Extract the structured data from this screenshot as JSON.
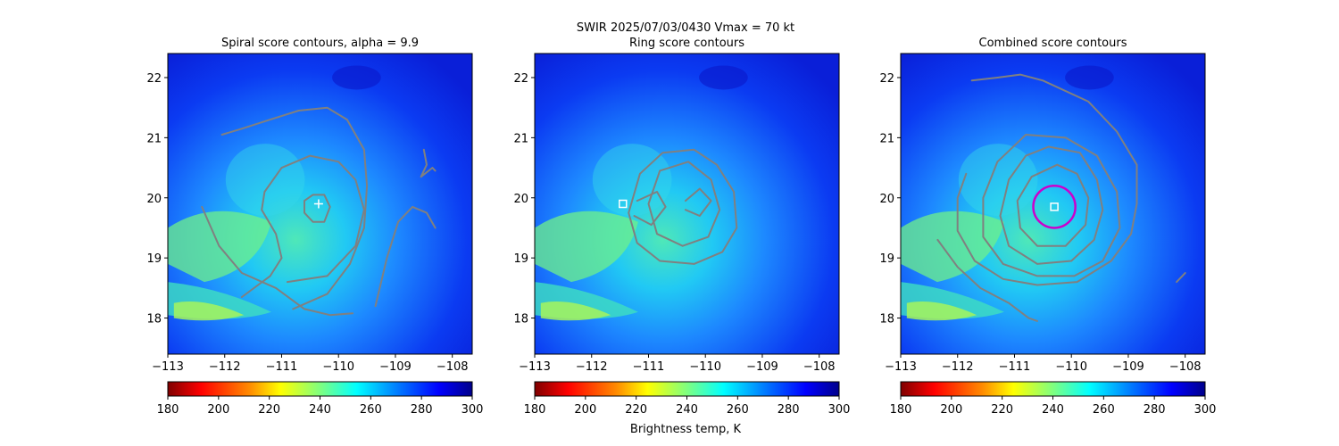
{
  "suptitle": "SWIR  2025/07/03/0430    Vmax = 70 kt",
  "colorbar_label": "Brightness temp, K",
  "colormap": [
    "#800000",
    "#ff0000",
    "#ff8000",
    "#ffff00",
    "#80ff80",
    "#00ffff",
    "#0080ff",
    "#0000ff",
    "#00008f"
  ],
  "chart_data": [
    {
      "type": "heatmap",
      "title": "Spiral score contours, alpha =  9.9",
      "xlim": [
        -113,
        -107.65
      ],
      "ylim": [
        17.4,
        22.4
      ],
      "xticks": [
        -113,
        -112,
        -111,
        -110,
        -109,
        -108
      ],
      "xtick_labels": [
        "−113",
        "−112",
        "−111",
        "−110",
        "−109",
        "−108"
      ],
      "yticks": [
        18,
        19,
        20,
        21,
        22
      ],
      "ytick_labels": [
        "18",
        "19",
        "20",
        "21",
        "22"
      ],
      "center_marker": {
        "lon": -110.35,
        "lat": 19.9,
        "symbol": "+"
      },
      "colorbar": {
        "min": 180,
        "max": 300,
        "ticks": [
          180,
          200,
          220,
          240,
          260,
          280,
          300
        ],
        "tick_labels": [
          "180",
          "200",
          "220",
          "240",
          "260",
          "280",
          "300"
        ]
      },
      "contours": [
        [
          [
            -110.45,
            20.05
          ],
          [
            -110.25,
            20.05
          ],
          [
            -110.15,
            19.85
          ],
          [
            -110.25,
            19.6
          ],
          [
            -110.45,
            19.6
          ],
          [
            -110.6,
            19.75
          ],
          [
            -110.6,
            19.95
          ],
          [
            -110.45,
            20.05
          ]
        ],
        [
          [
            -111.7,
            18.35
          ],
          [
            -111.2,
            18.7
          ],
          [
            -111.0,
            19.0
          ],
          [
            -111.1,
            19.4
          ],
          [
            -111.35,
            19.8
          ],
          [
            -111.3,
            20.1
          ],
          [
            -111.0,
            20.5
          ],
          [
            -110.5,
            20.7
          ],
          [
            -110.0,
            20.6
          ],
          [
            -109.7,
            20.3
          ],
          [
            -109.55,
            19.8
          ],
          [
            -109.7,
            19.2
          ],
          [
            -110.2,
            18.7
          ],
          [
            -110.9,
            18.6
          ]
        ],
        [
          [
            -112.4,
            19.85
          ],
          [
            -112.1,
            19.2
          ],
          [
            -111.7,
            18.75
          ],
          [
            -111.1,
            18.5
          ],
          [
            -110.6,
            18.15
          ],
          [
            -110.15,
            18.05
          ],
          [
            -109.75,
            18.08
          ]
        ],
        [
          [
            -112.05,
            21.05
          ],
          [
            -111.7,
            21.15
          ],
          [
            -111.2,
            21.3
          ],
          [
            -110.7,
            21.45
          ],
          [
            -110.2,
            21.5
          ],
          [
            -109.85,
            21.3
          ],
          [
            -109.55,
            20.8
          ],
          [
            -109.5,
            20.2
          ],
          [
            -109.55,
            19.5
          ],
          [
            -109.8,
            18.9
          ],
          [
            -110.2,
            18.4
          ],
          [
            -110.8,
            18.15
          ]
        ],
        [
          [
            -109.35,
            18.2
          ],
          [
            -109.15,
            19.0
          ],
          [
            -108.95,
            19.6
          ],
          [
            -108.7,
            19.85
          ],
          [
            -108.45,
            19.75
          ],
          [
            -108.3,
            19.5
          ]
        ],
        [
          [
            -108.5,
            20.8
          ],
          [
            -108.45,
            20.55
          ],
          [
            -108.55,
            20.35
          ],
          [
            -108.35,
            20.5
          ],
          [
            -108.3,
            20.45
          ]
        ]
      ]
    },
    {
      "type": "heatmap",
      "title": "Ring score contours",
      "xlim": [
        -113,
        -107.65
      ],
      "ylim": [
        17.4,
        22.4
      ],
      "xticks": [
        -113,
        -112,
        -111,
        -110,
        -109,
        -108
      ],
      "xtick_labels": [
        "−113",
        "−112",
        "−111",
        "−110",
        "−109",
        "−108"
      ],
      "yticks": [
        18,
        19,
        20,
        21,
        22
      ],
      "ytick_labels": [
        "18",
        "19",
        "20",
        "21",
        "22"
      ],
      "center_marker": {
        "lon": -111.45,
        "lat": 19.9,
        "symbol": "square"
      },
      "colorbar": {
        "min": 180,
        "max": 300,
        "ticks": [
          180,
          200,
          220,
          240,
          260,
          280,
          300
        ],
        "tick_labels": [
          "180",
          "200",
          "220",
          "240",
          "260",
          "280",
          "300"
        ]
      },
      "contours": [
        [
          [
            -111.15,
            20.4
          ],
          [
            -110.75,
            20.75
          ],
          [
            -110.2,
            20.8
          ],
          [
            -109.8,
            20.55
          ],
          [
            -109.5,
            20.1
          ],
          [
            -109.45,
            19.5
          ],
          [
            -109.7,
            19.1
          ],
          [
            -110.2,
            18.9
          ],
          [
            -110.8,
            18.95
          ],
          [
            -111.2,
            19.25
          ],
          [
            -111.35,
            19.75
          ],
          [
            -111.15,
            20.4
          ]
        ],
        [
          [
            -110.8,
            20.45
          ],
          [
            -110.3,
            20.6
          ],
          [
            -109.9,
            20.3
          ],
          [
            -109.75,
            19.8
          ],
          [
            -109.95,
            19.35
          ],
          [
            -110.4,
            19.2
          ],
          [
            -110.85,
            19.4
          ],
          [
            -111.0,
            19.9
          ],
          [
            -110.8,
            20.45
          ]
        ],
        [
          [
            -111.2,
            19.95
          ],
          [
            -110.85,
            20.1
          ],
          [
            -110.7,
            19.85
          ],
          [
            -110.95,
            19.55
          ],
          [
            -111.25,
            19.7
          ]
        ],
        [
          [
            -110.35,
            19.95
          ],
          [
            -110.1,
            20.15
          ],
          [
            -109.9,
            19.95
          ],
          [
            -110.1,
            19.7
          ],
          [
            -110.35,
            19.8
          ]
        ]
      ]
    },
    {
      "type": "heatmap",
      "title": "Combined score contours",
      "xlim": [
        -113,
        -107.65
      ],
      "ylim": [
        17.4,
        22.4
      ],
      "xticks": [
        -113,
        -112,
        -111,
        -110,
        -109,
        -108
      ],
      "xtick_labels": [
        "−113",
        "−112",
        "−111",
        "−110",
        "−109",
        "−108"
      ],
      "yticks": [
        18,
        19,
        20,
        21,
        22
      ],
      "ytick_labels": [
        "18",
        "19",
        "20",
        "21",
        "22"
      ],
      "center_marker": {
        "lon": -110.3,
        "lat": 19.85,
        "symbol": "square"
      },
      "ring_marker": {
        "lon": -110.3,
        "lat": 19.85,
        "radius_deg": 0.37,
        "color": "#cc00cc"
      },
      "colorbar": {
        "min": 180,
        "max": 300,
        "ticks": [
          180,
          200,
          220,
          240,
          260,
          280,
          300
        ],
        "tick_labels": [
          "180",
          "200",
          "220",
          "240",
          "260",
          "280",
          "300"
        ]
      },
      "contours": [
        [
          [
            -110.25,
            20.55
          ],
          [
            -109.9,
            20.4
          ],
          [
            -109.7,
            20.0
          ],
          [
            -109.75,
            19.55
          ],
          [
            -110.1,
            19.2
          ],
          [
            -110.6,
            19.2
          ],
          [
            -110.9,
            19.5
          ],
          [
            -110.95,
            19.95
          ],
          [
            -110.7,
            20.35
          ],
          [
            -110.25,
            20.55
          ]
        ],
        [
          [
            -110.4,
            20.85
          ],
          [
            -109.85,
            20.75
          ],
          [
            -109.55,
            20.3
          ],
          [
            -109.45,
            19.8
          ],
          [
            -109.6,
            19.3
          ],
          [
            -110.0,
            18.95
          ],
          [
            -110.6,
            18.9
          ],
          [
            -111.1,
            19.2
          ],
          [
            -111.25,
            19.7
          ],
          [
            -111.1,
            20.3
          ],
          [
            -110.8,
            20.7
          ],
          [
            -110.4,
            20.85
          ]
        ],
        [
          [
            -110.8,
            21.05
          ],
          [
            -110.1,
            21.0
          ],
          [
            -109.55,
            20.7
          ],
          [
            -109.2,
            20.1
          ],
          [
            -109.15,
            19.5
          ],
          [
            -109.45,
            18.95
          ],
          [
            -109.95,
            18.7
          ],
          [
            -110.6,
            18.7
          ],
          [
            -111.2,
            18.9
          ],
          [
            -111.55,
            19.35
          ],
          [
            -111.55,
            20.0
          ],
          [
            -111.3,
            20.6
          ],
          [
            -110.8,
            21.05
          ]
        ],
        [
          [
            -111.75,
            21.95
          ],
          [
            -111.3,
            22.0
          ],
          [
            -110.9,
            22.05
          ],
          [
            -110.5,
            21.95
          ],
          [
            -109.7,
            21.6
          ],
          [
            -109.2,
            21.1
          ],
          [
            -108.85,
            20.55
          ],
          [
            -108.85,
            19.9
          ],
          [
            -108.95,
            19.4
          ],
          [
            -109.3,
            18.95
          ],
          [
            -109.9,
            18.6
          ],
          [
            -110.6,
            18.55
          ],
          [
            -111.2,
            18.65
          ],
          [
            -111.7,
            18.95
          ],
          [
            -112.0,
            19.45
          ],
          [
            -112.0,
            20.0
          ],
          [
            -111.85,
            20.4
          ]
        ],
        [
          [
            -112.35,
            19.3
          ],
          [
            -112.0,
            18.85
          ],
          [
            -111.6,
            18.5
          ],
          [
            -111.1,
            18.25
          ],
          [
            -110.75,
            18.0
          ],
          [
            -110.6,
            17.95
          ]
        ],
        [
          [
            -108.15,
            18.6
          ],
          [
            -108.05,
            18.7
          ],
          [
            -108.0,
            18.75
          ]
        ]
      ]
    }
  ]
}
